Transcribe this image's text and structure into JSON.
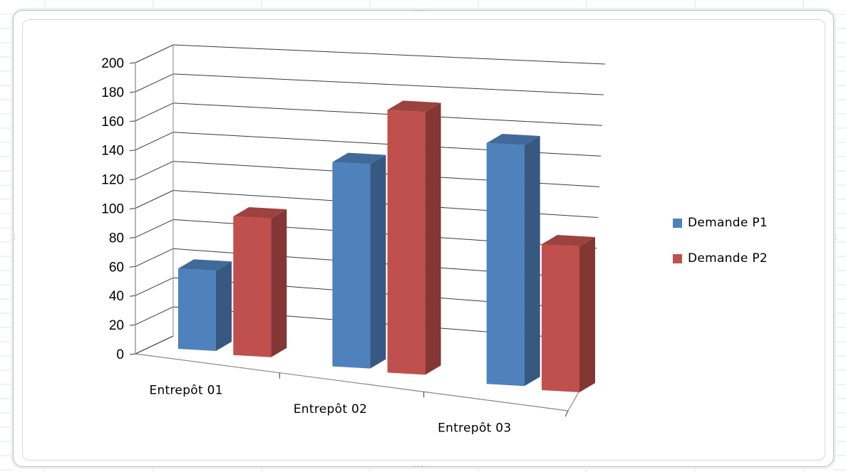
{
  "chart_data": {
    "type": "bar",
    "subtype": "3d-clustered-column",
    "categories": [
      "Entrepôt  01",
      "Entrepôt  02",
      "Entrepôt  03"
    ],
    "series": [
      {
        "name": "Demande P1",
        "color": "#4f81bd",
        "values": [
          55,
          140,
          165
        ]
      },
      {
        "name": "Demande P2",
        "color": "#c0504d",
        "values": [
          95,
          180,
          100
        ]
      }
    ],
    "y_ticks": [
      "200",
      "180",
      "160",
      "140",
      "120",
      "100",
      "80",
      "60",
      "40",
      "20",
      "0"
    ],
    "ylim": [
      0,
      200
    ],
    "grid": true,
    "legend_position": "right"
  }
}
